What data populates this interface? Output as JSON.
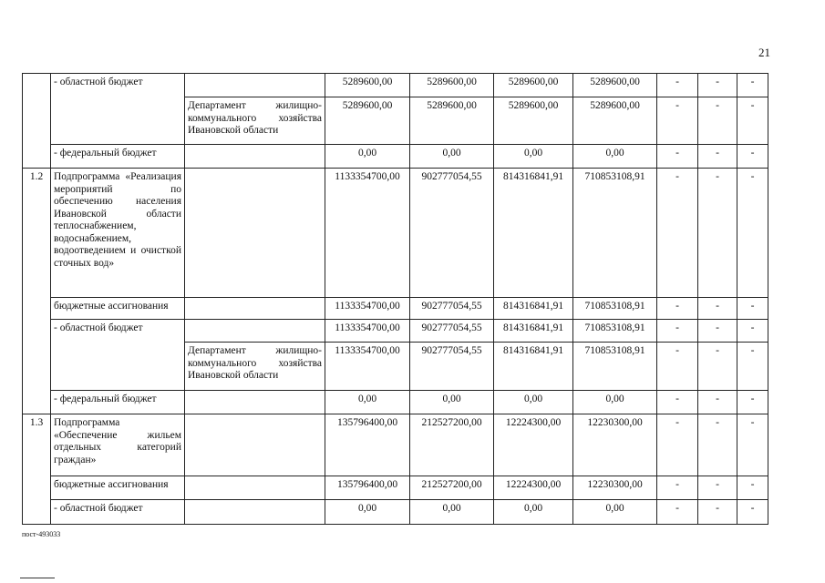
{
  "page_number": "21",
  "footer_code": "пост-493033",
  "dept": "Департамент жилищно-коммунального хозяйства Ивановской области",
  "rows": [
    {
      "name": "- областной бюджет",
      "dept": "",
      "v": [
        "5289600,00",
        "5289600,00",
        "5289600,00",
        "5289600,00"
      ],
      "d": [
        "-",
        "-",
        "-"
      ]
    },
    {
      "dept": "Департамент жилищно-коммунального хозяйства Ивановской области",
      "v": [
        "5289600,00",
        "5289600,00",
        "5289600,00",
        "5289600,00"
      ],
      "d": [
        "-",
        "-",
        "-"
      ]
    },
    {
      "name": "- федеральный бюджет",
      "dept": "",
      "v": [
        "0,00",
        "0,00",
        "0,00",
        "0,00"
      ],
      "d": [
        "-",
        "-",
        "-"
      ]
    },
    {
      "num": "1.2",
      "name": "Подпрограмма «Реализация мероприятий по обеспечению населения Ивановской области теплоснабжением, водоснабжением, водоотведением и очисткой сточных вод»",
      "dept": "",
      "v": [
        "1133354700,00",
        "902777054,55",
        "814316841,91",
        "710853108,91"
      ],
      "d": [
        "-",
        "-",
        "-"
      ]
    },
    {
      "name": "бюджетные ассигнования",
      "dept": "",
      "v": [
        "1133354700,00",
        "902777054,55",
        "814316841,91",
        "710853108,91"
      ],
      "d": [
        "-",
        "-",
        "-"
      ]
    },
    {
      "name": "- областной бюджет",
      "dept": "",
      "v": [
        "1133354700,00",
        "902777054,55",
        "814316841,91",
        "710853108,91"
      ],
      "d": [
        "-",
        "-",
        "-"
      ]
    },
    {
      "dept": "Департамент жилищно-коммунального хозяйства Ивановской области",
      "v": [
        "1133354700,00",
        "902777054,55",
        "814316841,91",
        "710853108,91"
      ],
      "d": [
        "-",
        "-",
        "-"
      ]
    },
    {
      "name": "- федеральный бюджет",
      "dept": "",
      "v": [
        "0,00",
        "0,00",
        "0,00",
        "0,00"
      ],
      "d": [
        "-",
        "-",
        "-"
      ]
    },
    {
      "num": "1.3",
      "name": "Подпрограмма «Обеспечение жильем отдельных категорий граждан»",
      "dept": "",
      "v": [
        "135796400,00",
        "212527200,00",
        "12224300,00",
        "12230300,00"
      ],
      "d": [
        "-",
        "-",
        "-"
      ]
    },
    {
      "name": "бюджетные ассигнования",
      "dept": "",
      "v": [
        "135796400,00",
        "212527200,00",
        "12224300,00",
        "12230300,00"
      ],
      "d": [
        "-",
        "-",
        "-"
      ]
    },
    {
      "name": "- областной бюджет",
      "dept": "",
      "v": [
        "0,00",
        "0,00",
        "0,00",
        "0,00"
      ],
      "d": [
        "-",
        "-",
        "-"
      ]
    }
  ]
}
